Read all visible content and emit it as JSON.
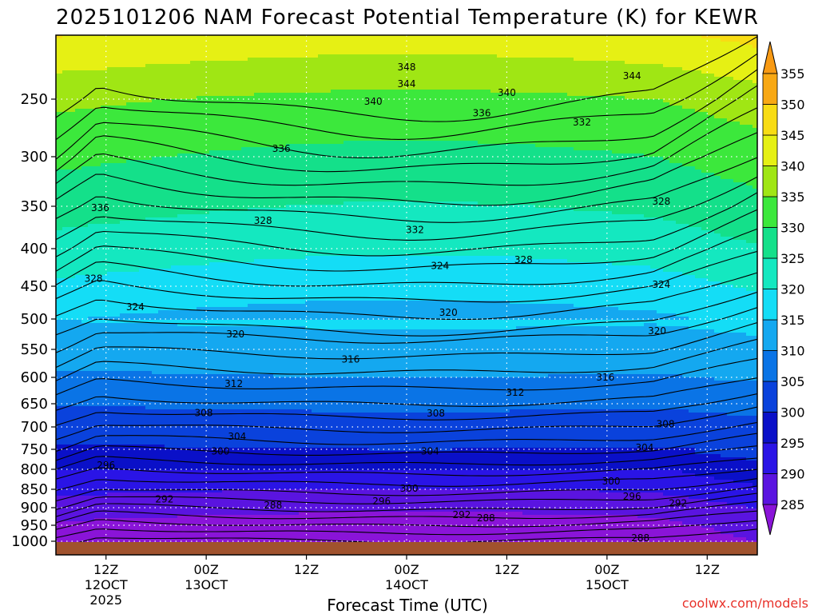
{
  "chart_data": {
    "type": "filled-contour",
    "title": "2025101206 NAM Forecast Potential Temperature (K) for KEWR",
    "xlabel": "Forecast Time (UTC)",
    "ylabel": "",
    "credit": "coolwx.com/models",
    "y_axis": {
      "reversed": true,
      "ticks": [
        250,
        300,
        350,
        400,
        450,
        500,
        550,
        600,
        650,
        700,
        750,
        800,
        850,
        900,
        950,
        1000
      ],
      "tick_labels": [
        "250",
        "300",
        "350",
        "400",
        "450",
        "500",
        "550",
        "600",
        "650",
        "700",
        "750",
        "800",
        "850",
        "900",
        "950",
        "1000"
      ]
    },
    "x_axis": {
      "hours_range": [
        6,
        90
      ],
      "ticks": [
        {
          "hour": 12,
          "line1": "12Z",
          "line2": "12OCT",
          "line3": "2025"
        },
        {
          "hour": 24,
          "line1": "00Z",
          "line2": "13OCT",
          "line3": ""
        },
        {
          "hour": 36,
          "line1": "12Z",
          "line2": "",
          "line3": ""
        },
        {
          "hour": 48,
          "line1": "00Z",
          "line2": "14OCT",
          "line3": ""
        },
        {
          "hour": 60,
          "line1": "12Z",
          "line2": "",
          "line3": ""
        },
        {
          "hour": 72,
          "line1": "00Z",
          "line2": "15OCT",
          "line3": ""
        },
        {
          "hour": 84,
          "line1": "12Z",
          "line2": "",
          "line3": ""
        }
      ]
    },
    "grid": "dotted",
    "colorbar": {
      "levels": [
        285,
        290,
        295,
        300,
        305,
        310,
        315,
        320,
        325,
        330,
        335,
        340,
        345,
        350,
        355
      ],
      "labels": [
        "285",
        "290",
        "295",
        "300",
        "305",
        "310",
        "315",
        "320",
        "325",
        "330",
        "335",
        "340",
        "345",
        "350",
        "355"
      ],
      "colors": [
        "#8a14d8",
        "#5a14e0",
        "#2a14e6",
        "#0a10c8",
        "#0a42dc",
        "#0a74e6",
        "#14a8f0",
        "#14ddf6",
        "#14e8c0",
        "#14e08a",
        "#3ce83c",
        "#a0e614",
        "#e6f014",
        "#f8dc14",
        "#f8a814"
      ]
    },
    "contour_labels": [
      {
        "text": "348",
        "hour": 48.0,
        "p": 225
      },
      {
        "text": "344",
        "hour": 75.0,
        "p": 232
      },
      {
        "text": "344",
        "hour": 48.0,
        "p": 238
      },
      {
        "text": "340",
        "hour": 60.0,
        "p": 245
      },
      {
        "text": "340",
        "hour": 44.0,
        "p": 252
      },
      {
        "text": "336",
        "hour": 57.0,
        "p": 262
      },
      {
        "text": "332",
        "hour": 69.0,
        "p": 270
      },
      {
        "text": "336",
        "hour": 33.0,
        "p": 293
      },
      {
        "text": "336",
        "hour": 11.3,
        "p": 352
      },
      {
        "text": "328",
        "hour": 78.5,
        "p": 345
      },
      {
        "text": "328",
        "hour": 30.8,
        "p": 367
      },
      {
        "text": "332",
        "hour": 49.0,
        "p": 378
      },
      {
        "text": "328",
        "hour": 62.0,
        "p": 415
      },
      {
        "text": "324",
        "hour": 52.0,
        "p": 423
      },
      {
        "text": "328",
        "hour": 10.5,
        "p": 440
      },
      {
        "text": "324",
        "hour": 78.5,
        "p": 448
      },
      {
        "text": "324",
        "hour": 15.5,
        "p": 482
      },
      {
        "text": "320",
        "hour": 53.0,
        "p": 490
      },
      {
        "text": "320",
        "hour": 27.5,
        "p": 525
      },
      {
        "text": "320",
        "hour": 78.0,
        "p": 520
      },
      {
        "text": "316",
        "hour": 41.3,
        "p": 568
      },
      {
        "text": "316",
        "hour": 71.8,
        "p": 600
      },
      {
        "text": "312",
        "hour": 27.3,
        "p": 612
      },
      {
        "text": "312",
        "hour": 61.0,
        "p": 629
      },
      {
        "text": "308",
        "hour": 23.7,
        "p": 670
      },
      {
        "text": "308",
        "hour": 51.5,
        "p": 671
      },
      {
        "text": "308",
        "hour": 79.0,
        "p": 694
      },
      {
        "text": "304",
        "hour": 27.7,
        "p": 721
      },
      {
        "text": "304",
        "hour": 50.8,
        "p": 755
      },
      {
        "text": "304",
        "hour": 76.5,
        "p": 746
      },
      {
        "text": "300",
        "hour": 25.7,
        "p": 755
      },
      {
        "text": "296",
        "hour": 12.0,
        "p": 790
      },
      {
        "text": "300",
        "hour": 72.5,
        "p": 830
      },
      {
        "text": "300",
        "hour": 48.3,
        "p": 848
      },
      {
        "text": "296",
        "hour": 75.0,
        "p": 870
      },
      {
        "text": "292",
        "hour": 19.0,
        "p": 877
      },
      {
        "text": "296",
        "hour": 45.0,
        "p": 883
      },
      {
        "text": "292",
        "hour": 80.5,
        "p": 888
      },
      {
        "text": "288",
        "hour": 32.0,
        "p": 893
      },
      {
        "text": "292",
        "hour": 54.6,
        "p": 920
      },
      {
        "text": "288",
        "hour": 57.5,
        "p": 930
      },
      {
        "text": "288",
        "hour": 76.0,
        "p": 990
      }
    ]
  },
  "colors": {
    "ground": "#a0522d",
    "frame": "#000000",
    "grid": "#ffffff",
    "credit": "#e8322a"
  }
}
